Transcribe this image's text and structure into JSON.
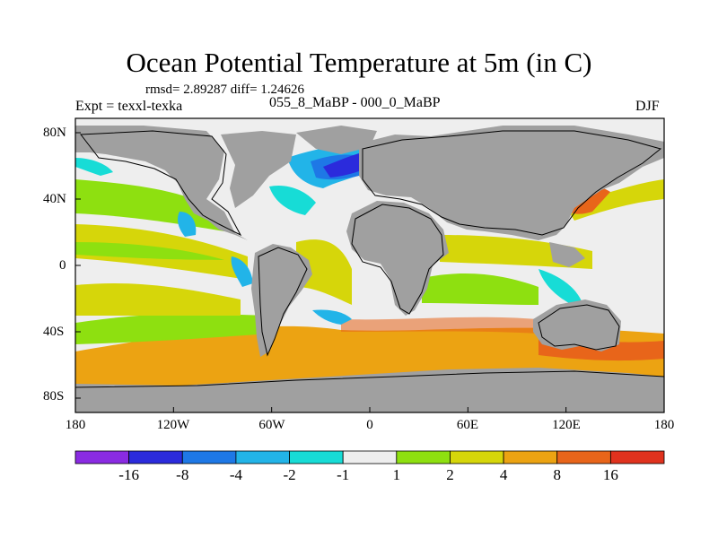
{
  "title": "Ocean Potential Temperature at 5m (in C)",
  "stats": "rmsd= 2.89287 diff= 1.24626",
  "experiment": "Expt = texxl-texka",
  "period": "055_8_MaBP - 000_0_MaBP",
  "season": "DJF",
  "lat_ticks": [
    "80N",
    "40N",
    "0",
    "40S",
    "80S"
  ],
  "lon_ticks": [
    "180",
    "120W",
    "60W",
    "0",
    "60E",
    "120E",
    "180"
  ],
  "colorbar": {
    "labels": [
      "-16",
      "-8",
      "-4",
      "-2",
      "-1",
      "1",
      "2",
      "4",
      "8",
      "16"
    ],
    "colors": [
      "#8a2be2",
      "#2b2bdc",
      "#1e78e6",
      "#22b4e8",
      "#17dcd6",
      "#eeeeee",
      "#8ee010",
      "#d6d60a",
      "#eca312",
      "#e8651a",
      "#e0321e"
    ]
  },
  "land_color": "#a0a0a0"
}
